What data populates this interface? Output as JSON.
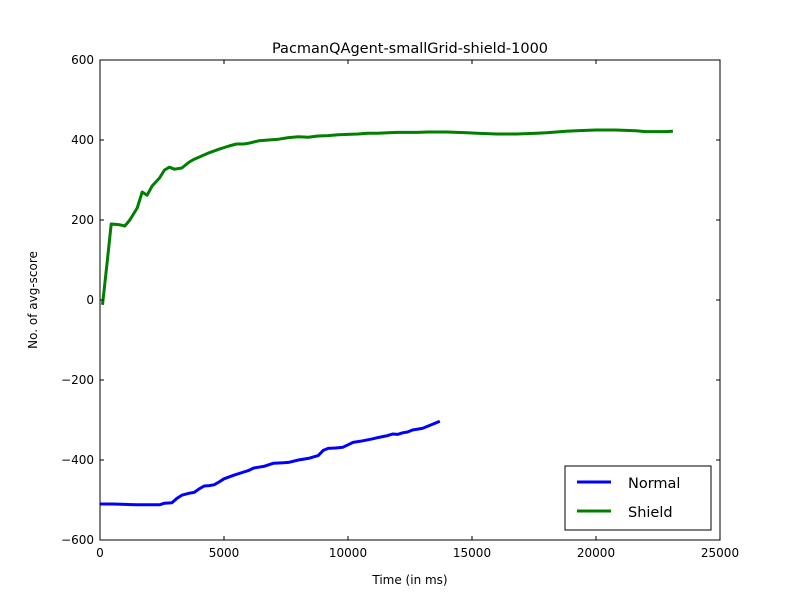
{
  "chart_data": {
    "type": "line",
    "title": "PacmanQAgent-smallGrid-shield-1000",
    "xlabel": "Time (in ms)",
    "ylabel": "No. of avg-score",
    "xlim": [
      0,
      25000
    ],
    "ylim": [
      -600,
      600
    ],
    "xticks": [
      0,
      5000,
      10000,
      15000,
      20000,
      25000
    ],
    "yticks": [
      -600,
      -400,
      -200,
      0,
      200,
      400,
      600
    ],
    "xtick_labels": [
      "0",
      "5000",
      "10000",
      "15000",
      "20000",
      "25000"
    ],
    "ytick_labels": [
      "−600",
      "−400",
      "−200",
      "0",
      "200",
      "400",
      "600"
    ],
    "grid": false,
    "legend_position": "lower-right",
    "series": [
      {
        "name": "Normal",
        "color": "#0000ff",
        "x": [
          0,
          500,
          1000,
          1500,
          2000,
          2400,
          2600,
          2900,
          3100,
          3300,
          3600,
          3800,
          4000,
          4200,
          4400,
          4600,
          4800,
          5000,
          5400,
          5800,
          6000,
          6200,
          6400,
          6600,
          7000,
          7400,
          7600,
          8000,
          8400,
          8800,
          9000,
          9200,
          9500,
          9800,
          10000,
          10200,
          10600,
          11000,
          11200,
          11600,
          11800,
          12000,
          12200,
          12400,
          12600,
          13000,
          13400,
          13700
        ],
        "y": [
          -510,
          -510,
          -511,
          -512,
          -512,
          -512,
          -508,
          -507,
          -496,
          -488,
          -483,
          -481,
          -472,
          -465,
          -464,
          -462,
          -455,
          -447,
          -438,
          -430,
          -426,
          -420,
          -418,
          -416,
          -408,
          -407,
          -406,
          -400,
          -396,
          -389,
          -376,
          -371,
          -370,
          -368,
          -362,
          -356,
          -352,
          -347,
          -344,
          -339,
          -335,
          -336,
          -332,
          -330,
          -325,
          -321,
          -311,
          -303
        ]
      },
      {
        "name": "Shield",
        "color": "#007f00",
        "x": [
          100,
          300,
          450,
          800,
          1000,
          1200,
          1500,
          1700,
          1900,
          2100,
          2400,
          2600,
          2800,
          3000,
          3300,
          3600,
          3800,
          4100,
          4400,
          4800,
          5200,
          5500,
          5800,
          6000,
          6400,
          6800,
          7200,
          7600,
          8000,
          8400,
          8800,
          9200,
          9600,
          10000,
          10400,
          10800,
          11200,
          11600,
          12000,
          12400,
          12800,
          13200,
          13600,
          14000,
          14400,
          14800,
          15200,
          15600,
          16000,
          16400,
          16800,
          17200,
          17600,
          18000,
          18400,
          18800,
          19200,
          19600,
          20000,
          20400,
          20800,
          21200,
          21600,
          22000,
          22400,
          22800,
          23100
        ],
        "y": [
          -12,
          100,
          190,
          188,
          185,
          200,
          230,
          270,
          262,
          285,
          305,
          325,
          332,
          327,
          330,
          345,
          352,
          360,
          368,
          377,
          385,
          390,
          390,
          392,
          398,
          400,
          402,
          406,
          408,
          407,
          410,
          411,
          413,
          414,
          415,
          417,
          417,
          418,
          419,
          419,
          419,
          420,
          420,
          420,
          419,
          418,
          417,
          416,
          415,
          415,
          415,
          416,
          417,
          418,
          420,
          422,
          423,
          424,
          425,
          425,
          425,
          424,
          423,
          421,
          421,
          421,
          422
        ]
      }
    ]
  }
}
